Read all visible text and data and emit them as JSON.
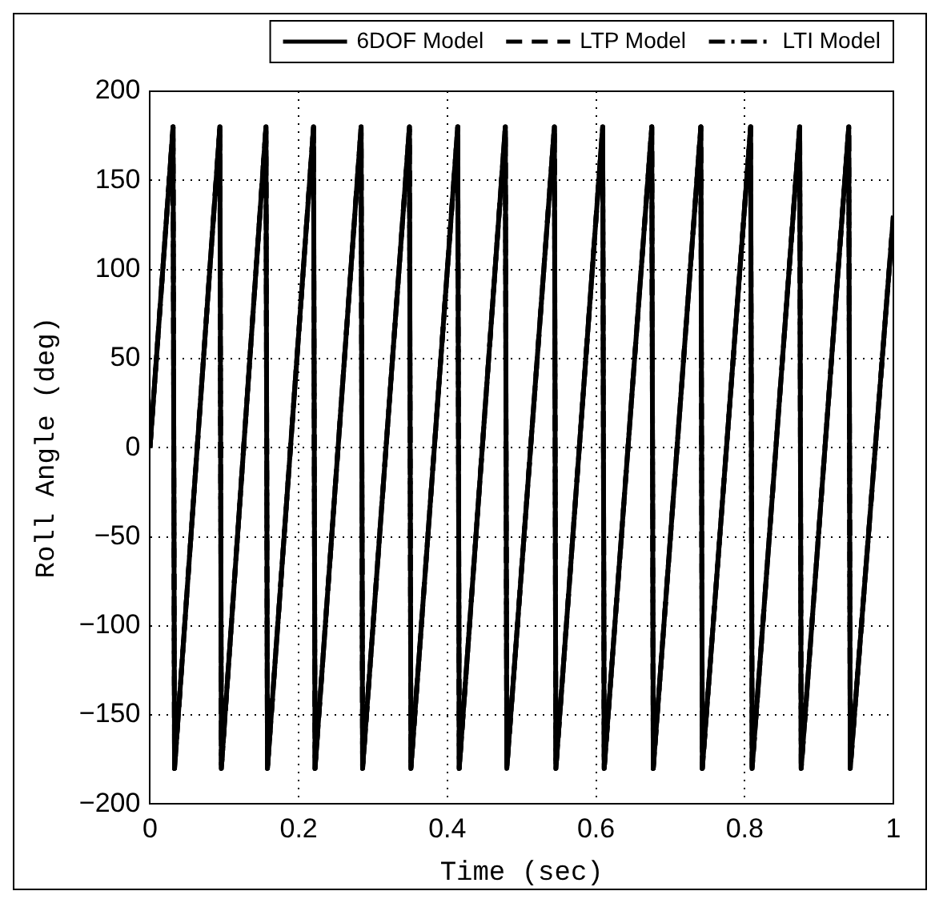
{
  "chart_data": {
    "type": "line",
    "xlabel": "Time (sec)",
    "ylabel": "Roll Angle (deg)",
    "x": [
      0,
      0.031,
      0.033,
      0.094,
      0.096,
      0.156,
      0.158,
      0.22,
      0.222,
      0.284,
      0.286,
      0.349,
      0.351,
      0.414,
      0.416,
      0.478,
      0.48,
      0.544,
      0.546,
      0.609,
      0.611,
      0.675,
      0.677,
      0.741,
      0.743,
      0.808,
      0.81,
      0.874,
      0.876,
      0.94,
      0.942,
      1
    ],
    "series": [
      {
        "name": "6DOF Model",
        "color": "#000000",
        "line_style": "solid",
        "values": [
          0,
          180,
          -180,
          180,
          -180,
          180,
          -180,
          180,
          -180,
          180,
          -180,
          180,
          -180,
          180,
          -180,
          180,
          -180,
          180,
          -180,
          180,
          -180,
          180,
          -180,
          180,
          -180,
          180,
          -180,
          180,
          -180,
          180,
          -180,
          130
        ]
      },
      {
        "name": "LTP Model",
        "color": "#000000",
        "line_style": "dashed",
        "values": [
          0,
          180,
          -180,
          180,
          -180,
          180,
          -180,
          180,
          -180,
          180,
          -180,
          180,
          -180,
          180,
          -180,
          180,
          -180,
          180,
          -180,
          180,
          -180,
          180,
          -180,
          180,
          -180,
          180,
          -180,
          180,
          -180,
          180,
          -180,
          130
        ]
      },
      {
        "name": "LTI Model",
        "color": "#000000",
        "line_style": "dashdot",
        "values": [
          0,
          180,
          -180,
          180,
          -180,
          180,
          -180,
          180,
          -180,
          180,
          -180,
          180,
          -180,
          180,
          -180,
          180,
          -180,
          180,
          -180,
          180,
          -180,
          180,
          -180,
          180,
          -180,
          180,
          -180,
          180,
          -180,
          180,
          -180,
          130
        ]
      }
    ],
    "xlim": [
      0,
      1
    ],
    "xticks": [
      0,
      0.2,
      0.4,
      0.6,
      0.8,
      1
    ],
    "ylim": [
      -200,
      200
    ],
    "yticks": [
      -200,
      -150,
      -100,
      -50,
      0,
      50,
      100,
      150,
      200
    ],
    "grid": true,
    "legend": "top right",
    "marker": "none"
  }
}
